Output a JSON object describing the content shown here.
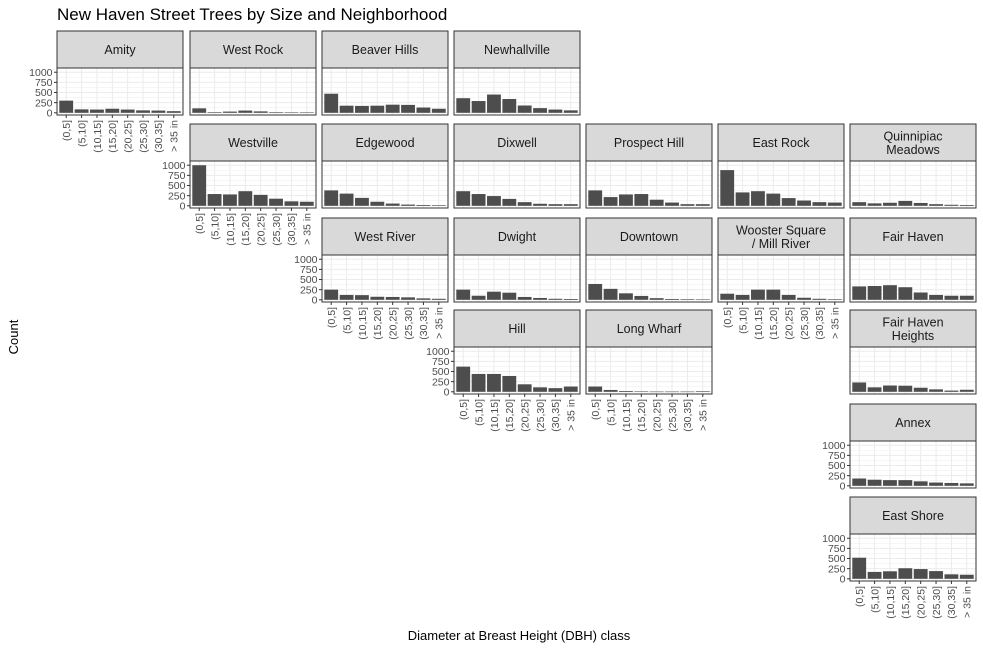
{
  "chart_data": {
    "type": "bar",
    "title": "New Haven Street Trees by Size and Neighborhood",
    "xlabel": "Diameter at Breast Height (DBH) class",
    "ylabel": "Count",
    "categories": [
      "(0,5]",
      "(5,10]",
      "(10,15]",
      "(15,20]",
      "(20,25]",
      "(25,30]",
      "(30,35]",
      "> 35 in"
    ],
    "y_ticks": [
      "0",
      "250",
      "500",
      "750",
      "1000"
    ],
    "ylim": [
      0,
      1050
    ],
    "grid": true,
    "bar_color": "#4d4d4d",
    "panels": [
      {
        "name": "Amity",
        "row": 0,
        "col": 0,
        "values": [
          300,
          85,
          80,
          100,
          80,
          60,
          55,
          40
        ],
        "y_axis": true,
        "x_axis": true
      },
      {
        "name": "West Rock",
        "row": 0,
        "col": 1,
        "values": [
          110,
          15,
          30,
          55,
          35,
          15,
          10,
          10
        ],
        "y_axis": false,
        "x_axis": false
      },
      {
        "name": "Beaver Hills",
        "row": 0,
        "col": 2,
        "values": [
          470,
          175,
          170,
          175,
          200,
          195,
          130,
          100
        ],
        "y_axis": false,
        "x_axis": false
      },
      {
        "name": "Newhallville",
        "row": 0,
        "col": 3,
        "values": [
          360,
          290,
          450,
          340,
          180,
          115,
          80,
          60
        ],
        "y_axis": false,
        "x_axis": false
      },
      {
        "name": "Westville",
        "row": 1,
        "col": 1,
        "values": [
          1000,
          290,
          280,
          360,
          270,
          175,
          110,
          100
        ],
        "y_axis": true,
        "x_axis": true
      },
      {
        "name": "Edgewood",
        "row": 1,
        "col": 2,
        "values": [
          380,
          300,
          195,
          100,
          55,
          30,
          20,
          15
        ],
        "y_axis": false,
        "x_axis": false
      },
      {
        "name": "Dixwell",
        "row": 1,
        "col": 3,
        "values": [
          360,
          290,
          240,
          170,
          90,
          50,
          40,
          40
        ],
        "y_axis": false,
        "x_axis": false
      },
      {
        "name": "Prospect Hill",
        "row": 1,
        "col": 4,
        "values": [
          380,
          215,
          280,
          290,
          150,
          80,
          40,
          40
        ],
        "y_axis": false,
        "x_axis": false
      },
      {
        "name": "East Rock",
        "row": 1,
        "col": 5,
        "values": [
          880,
          330,
          360,
          300,
          190,
          130,
          90,
          80
        ],
        "y_axis": false,
        "x_axis": false
      },
      {
        "name": "Quinnipiac\nMeadows",
        "row": 1,
        "col": 6,
        "values": [
          90,
          60,
          75,
          120,
          70,
          40,
          25,
          20
        ],
        "y_axis": false,
        "x_axis": false
      },
      {
        "name": "West River",
        "row": 2,
        "col": 2,
        "values": [
          250,
          120,
          115,
          75,
          70,
          60,
          35,
          25
        ],
        "y_axis": true,
        "x_axis": true
      },
      {
        "name": "Dwight",
        "row": 2,
        "col": 3,
        "values": [
          250,
          100,
          200,
          175,
          70,
          45,
          25,
          20
        ],
        "y_axis": false,
        "x_axis": false
      },
      {
        "name": "Downtown",
        "row": 2,
        "col": 4,
        "values": [
          390,
          270,
          160,
          95,
          40,
          20,
          15,
          10
        ],
        "y_axis": false,
        "x_axis": false
      },
      {
        "name": "Wooster Square\n/ Mill River",
        "row": 2,
        "col": 5,
        "values": [
          150,
          120,
          250,
          250,
          120,
          50,
          25,
          15
        ],
        "y_axis": false,
        "x_axis": true
      },
      {
        "name": "Fair Haven",
        "row": 2,
        "col": 6,
        "values": [
          330,
          340,
          360,
          310,
          180,
          120,
          100,
          100
        ],
        "y_axis": false,
        "x_axis": false
      },
      {
        "name": "Hill",
        "row": 3,
        "col": 3,
        "values": [
          620,
          440,
          440,
          390,
          185,
          110,
          90,
          130
        ],
        "y_axis": true,
        "x_axis": true
      },
      {
        "name": "Long Wharf",
        "row": 3,
        "col": 4,
        "values": [
          130,
          45,
          20,
          10,
          5,
          5,
          5,
          15
        ],
        "y_axis": false,
        "x_axis": true
      },
      {
        "name": "Fair Haven\nHeights",
        "row": 3,
        "col": 6,
        "values": [
          230,
          110,
          155,
          150,
          100,
          60,
          30,
          50
        ],
        "y_axis": false,
        "x_axis": false
      },
      {
        "name": "Annex",
        "row": 4,
        "col": 6,
        "values": [
          180,
          150,
          140,
          140,
          110,
          80,
          70,
          60
        ],
        "y_axis": true,
        "x_axis": false
      },
      {
        "name": "East Shore",
        "row": 5,
        "col": 6,
        "values": [
          520,
          170,
          185,
          260,
          240,
          190,
          110,
          100
        ],
        "y_axis": true,
        "x_axis": true
      }
    ]
  }
}
